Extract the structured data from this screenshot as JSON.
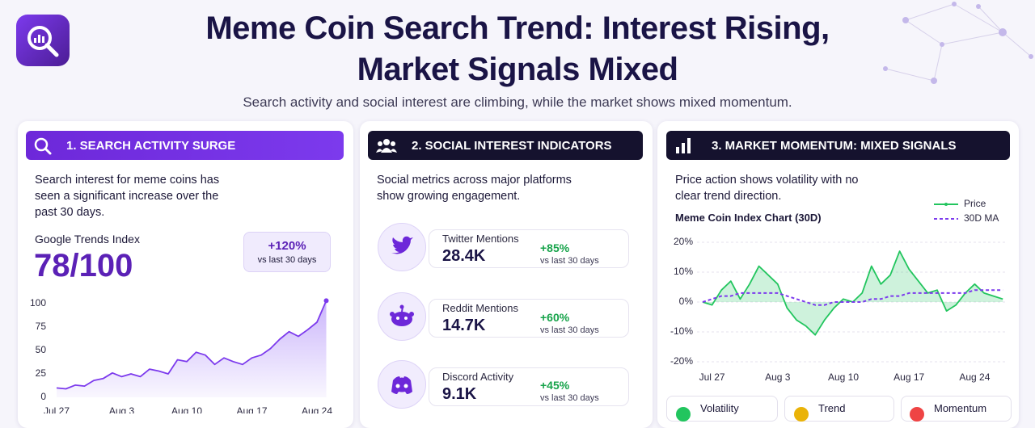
{
  "header": {
    "title_lines": [
      "Meme Coin Search Trend: Interest Rising,",
      "Market Signals Mixed"
    ],
    "subtitle": "Search activity and social interest are climbing, while the market shows mixed momentum."
  },
  "panels": [
    {
      "title": "1. SEARCH ACTIVITY SURGE",
      "description": "Search interest for meme coins has seen a significant increase over the past 30 days.",
      "metric_label": "Google Trends Index",
      "metric_value": "78/100",
      "badge_value": "+120%",
      "badge_note": "vs last 30 days"
    },
    {
      "title": "2. SOCIAL INTEREST INDICATORS",
      "description": "Social metrics across major platforms show growing engagement.",
      "items": [
        {
          "label": "Twitter Mentions",
          "value": "28.4K",
          "change": "+85%",
          "note": "vs last 30 days"
        },
        {
          "label": "Reddit Mentions",
          "value": "14.7K",
          "change": "+60%",
          "note": "vs last 30 days"
        },
        {
          "label": "Discord Activity",
          "value": "9.1K",
          "change": "+45%",
          "note": "vs last 30 days"
        }
      ]
    },
    {
      "title": "3. MARKET MOMENTUM: MIXED SIGNALS",
      "description": "Price action shows volatility with no clear trend direction.",
      "status_cards": [
        "Volatility",
        "Trend",
        "Momentum"
      ]
    }
  ],
  "chart_data": [
    {
      "type": "line",
      "categories": [
        "Jul 27",
        null,
        null,
        null,
        null,
        null,
        null,
        "Aug 3",
        null,
        null,
        null,
        null,
        null,
        null,
        "Aug 10",
        null,
        null,
        null,
        null,
        null,
        null,
        "Aug 17",
        null,
        null,
        null,
        null,
        null,
        null,
        "Aug 24",
        null
      ],
      "values": [
        10,
        9,
        13,
        12,
        18,
        20,
        26,
        22,
        25,
        22,
        30,
        28,
        25,
        40,
        38,
        48,
        45,
        35,
        42,
        38,
        35,
        42,
        45,
        52,
        62,
        70,
        65,
        72,
        80,
        103
      ],
      "color": "#7c3aed",
      "ylim": [
        0,
        105
      ],
      "yticks": [
        0,
        25,
        50,
        75,
        100
      ]
    },
    {
      "type": "line",
      "title": "Meme Coin Index Chart (30D)",
      "categories": [
        null,
        "Jul 27",
        null,
        null,
        null,
        null,
        null,
        null,
        "Aug 3",
        null,
        null,
        null,
        null,
        null,
        null,
        "Aug 10",
        null,
        null,
        null,
        null,
        null,
        null,
        "Aug 17",
        null,
        null,
        null,
        null,
        null,
        null,
        "Aug 24",
        null,
        null,
        null
      ],
      "series": [
        {
          "name": "Price",
          "color": "#22c55e",
          "values": [
            0,
            -1,
            4,
            7,
            1,
            6,
            12,
            9,
            6,
            -2,
            -6,
            -8,
            -11,
            -6,
            -2,
            1,
            0,
            3,
            12,
            6,
            9,
            17,
            11,
            7,
            3,
            4,
            -3,
            -1,
            3,
            6,
            3,
            2,
            1
          ]
        },
        {
          "name": "30D MA",
          "color": "#7c3aed",
          "dashed": true,
          "values": [
            0,
            1,
            2,
            2,
            3,
            3,
            3,
            3,
            3,
            2,
            1,
            0,
            -1,
            -1,
            0,
            0,
            0,
            0,
            1,
            1,
            2,
            2,
            3,
            3,
            3,
            3,
            3,
            3,
            3,
            4,
            4,
            4,
            4
          ]
        }
      ],
      "ylim": [
        -20,
        20
      ],
      "yticks": [
        {
          "value": 20,
          "label": "20%"
        },
        {
          "value": 10,
          "label": "10%"
        },
        {
          "value": 0,
          "label": "0%"
        },
        {
          "value": -10,
          "label": "-10%"
        },
        {
          "value": -20,
          "label": "-20%"
        }
      ],
      "grid": true,
      "legend": "top-right"
    }
  ]
}
